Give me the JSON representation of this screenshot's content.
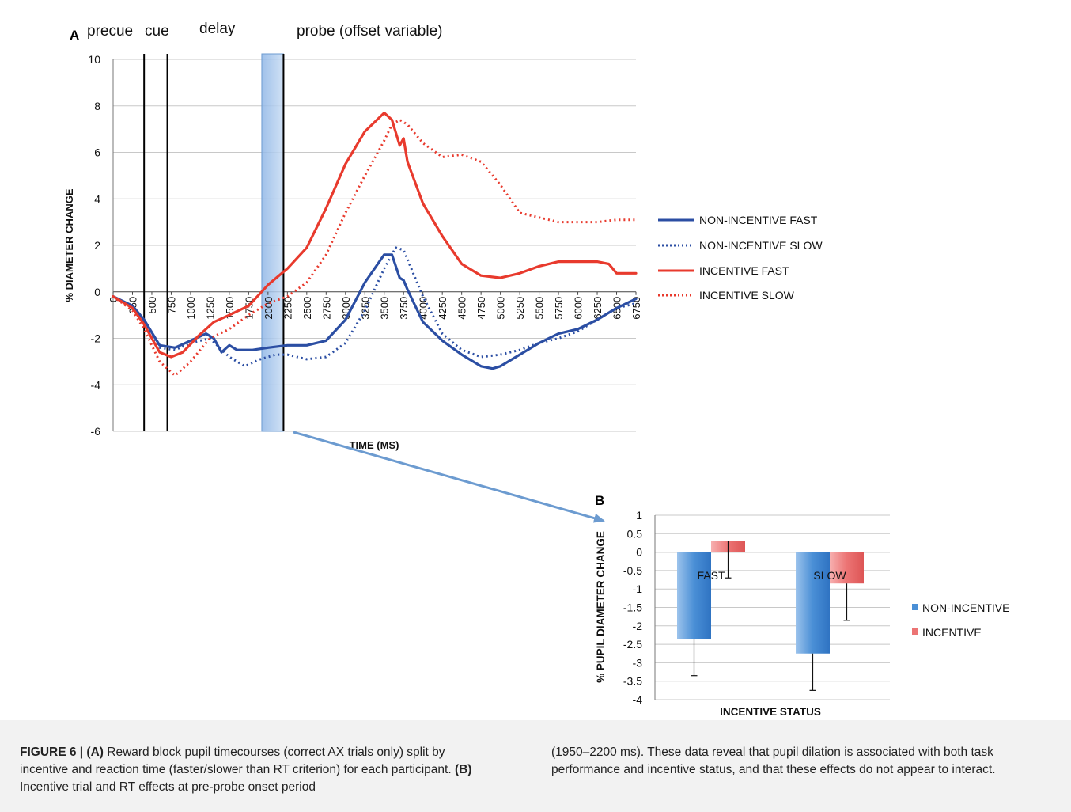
{
  "panel_a": {
    "letter": "A",
    "phase_labels": [
      "precue",
      "cue",
      "delay",
      "probe (offset variable)"
    ],
    "xlabel": "TIME (MS)",
    "ylabel": "% DIAMETER CHANGE",
    "yticks": [
      "10",
      "8",
      "6",
      "4",
      "2",
      "0",
      "-2",
      "-4",
      "-6"
    ],
    "xticks": [
      "0",
      "250",
      "500",
      "750",
      "1000",
      "1250",
      "1500",
      "1750",
      "2000",
      "2250",
      "2500",
      "2750",
      "3000",
      "3250",
      "3500",
      "3750",
      "4000",
      "4250",
      "4500",
      "4750",
      "5000",
      "5250",
      "5500",
      "5750",
      "6000",
      "6250",
      "6500",
      "6750"
    ],
    "legend": [
      "NON-INCENTIVE FAST",
      "NON-INCENTIVE SLOW",
      "INCENTIVE FAST",
      "INCENTIVE SLOW"
    ]
  },
  "panel_b": {
    "letter": "B",
    "xlabel": "INCENTIVE STATUS",
    "ylabel": "% PUPIL DIAMETER CHANGE",
    "yticks": [
      "1",
      "0.5",
      "0",
      "-0.5",
      "-1",
      "-1.5",
      "-2",
      "-2.5",
      "-3",
      "-3.5",
      "-4"
    ],
    "legend": [
      "NON-INCENTIVE",
      "INCENTIVE"
    ]
  },
  "chart_data": [
    {
      "type": "line",
      "xlabel": "TIME (MS)",
      "ylabel": "% DIAMETER CHANGE",
      "ylim": [
        -6,
        10
      ],
      "xlim": [
        0,
        6750
      ],
      "grid": true,
      "legend_position": "right",
      "event_markers_ms": [
        400,
        700
      ],
      "highlight_window_ms": [
        1950,
        2200
      ],
      "series": [
        {
          "name": "NON-INCENTIVE FAST",
          "color": "#2b4ea3",
          "style": "solid",
          "x": [
            0,
            250,
            400,
            600,
            800,
            1000,
            1200,
            1300,
            1400,
            1500,
            1600,
            1800,
            2000,
            2250,
            2500,
            2750,
            3000,
            3250,
            3500,
            3600,
            3700,
            3750,
            3800,
            4000,
            4250,
            4500,
            4750,
            4900,
            5000,
            5250,
            5500,
            5750,
            6000,
            6250,
            6500,
            6750
          ],
          "y": [
            -0.2,
            -0.6,
            -1.2,
            -2.3,
            -2.4,
            -2.1,
            -1.8,
            -2.0,
            -2.6,
            -2.3,
            -2.5,
            -2.5,
            -2.4,
            -2.3,
            -2.3,
            -2.1,
            -1.2,
            0.4,
            1.6,
            1.6,
            0.6,
            0.5,
            0.1,
            -1.3,
            -2.1,
            -2.7,
            -3.2,
            -3.3,
            -3.2,
            -2.7,
            -2.2,
            -1.8,
            -1.6,
            -1.2,
            -0.7,
            -0.3
          ]
        },
        {
          "name": "NON-INCENTIVE SLOW",
          "color": "#2b4ea3",
          "style": "dotted",
          "x": [
            0,
            250,
            400,
            600,
            800,
            1000,
            1250,
            1500,
            1700,
            1900,
            2100,
            2250,
            2500,
            2750,
            3000,
            3250,
            3500,
            3650,
            3750,
            4000,
            4250,
            4500,
            4750,
            5000,
            5250,
            5500,
            5750,
            6000,
            6250,
            6500,
            6750
          ],
          "y": [
            -0.2,
            -0.6,
            -1.3,
            -2.4,
            -2.5,
            -2.2,
            -2.0,
            -2.8,
            -3.2,
            -2.9,
            -2.7,
            -2.7,
            -2.9,
            -2.8,
            -2.2,
            -0.8,
            1.0,
            1.9,
            1.8,
            -0.2,
            -1.8,
            -2.5,
            -2.8,
            -2.7,
            -2.5,
            -2.2,
            -2.0,
            -1.7,
            -1.2,
            -0.7,
            -0.5
          ]
        },
        {
          "name": "INCENTIVE FAST",
          "color": "#e83a2d",
          "style": "solid",
          "x": [
            0,
            250,
            400,
            600,
            750,
            900,
            1100,
            1300,
            1500,
            1750,
            2000,
            2250,
            2500,
            2750,
            3000,
            3250,
            3500,
            3600,
            3700,
            3750,
            3800,
            4000,
            4250,
            4500,
            4750,
            5000,
            5250,
            5500,
            5750,
            6000,
            6250,
            6400,
            6500,
            6750
          ],
          "y": [
            -0.2,
            -0.7,
            -1.4,
            -2.6,
            -2.8,
            -2.6,
            -1.9,
            -1.3,
            -1.0,
            -0.6,
            0.3,
            1.0,
            1.9,
            3.6,
            5.5,
            6.9,
            7.7,
            7.4,
            6.3,
            6.6,
            5.6,
            3.8,
            2.4,
            1.2,
            0.7,
            0.6,
            0.8,
            1.1,
            1.3,
            1.3,
            1.3,
            1.2,
            0.8,
            0.8
          ]
        },
        {
          "name": "INCENTIVE SLOW",
          "color": "#e83a2d",
          "style": "dotted",
          "x": [
            0,
            250,
            400,
            600,
            800,
            1000,
            1250,
            1500,
            1750,
            2000,
            2250,
            2500,
            2750,
            3000,
            3250,
            3500,
            3600,
            3700,
            3800,
            4000,
            4250,
            4500,
            4750,
            5000,
            5250,
            5500,
            5750,
            6000,
            6250,
            6500,
            6750
          ],
          "y": [
            -0.2,
            -0.8,
            -1.6,
            -3.0,
            -3.6,
            -3.0,
            -2.0,
            -1.6,
            -1.0,
            -0.5,
            -0.2,
            0.4,
            1.6,
            3.4,
            5.0,
            6.5,
            7.2,
            7.4,
            7.2,
            6.4,
            5.8,
            5.9,
            5.6,
            4.6,
            3.4,
            3.2,
            3.0,
            3.0,
            3.0,
            3.1,
            3.1
          ]
        }
      ]
    },
    {
      "type": "bar",
      "xlabel": "INCENTIVE STATUS",
      "ylabel": "% PUPIL DIAMETER CHANGE",
      "ylim": [
        -4,
        1
      ],
      "categories": [
        "FAST",
        "SLOW"
      ],
      "legend_position": "right",
      "series": [
        {
          "name": "NON-INCENTIVE",
          "color": "#4a8fd6",
          "values": [
            -2.35,
            -2.75
          ],
          "error": [
            1.0,
            1.0
          ]
        },
        {
          "name": "INCENTIVE",
          "color": "#e86a6a",
          "values": [
            0.3,
            -0.85
          ],
          "error": [
            1.0,
            1.0
          ]
        }
      ]
    }
  ],
  "caption": {
    "left_bold1": "FIGURE 6 | (A)",
    "left_text1": " Reward block pupil timecourses (correct AX trials only) split by incentive and reaction time (faster/slower than RT criterion) for each participant. ",
    "left_bold2": "(B)",
    "left_text2": " Incentive trial and RT effects at pre-probe onset period",
    "right_text": "(1950–2200 ms). These data reveal that pupil dilation is associated with both task performance and incentive status, and that these effects do not appear to interact."
  }
}
